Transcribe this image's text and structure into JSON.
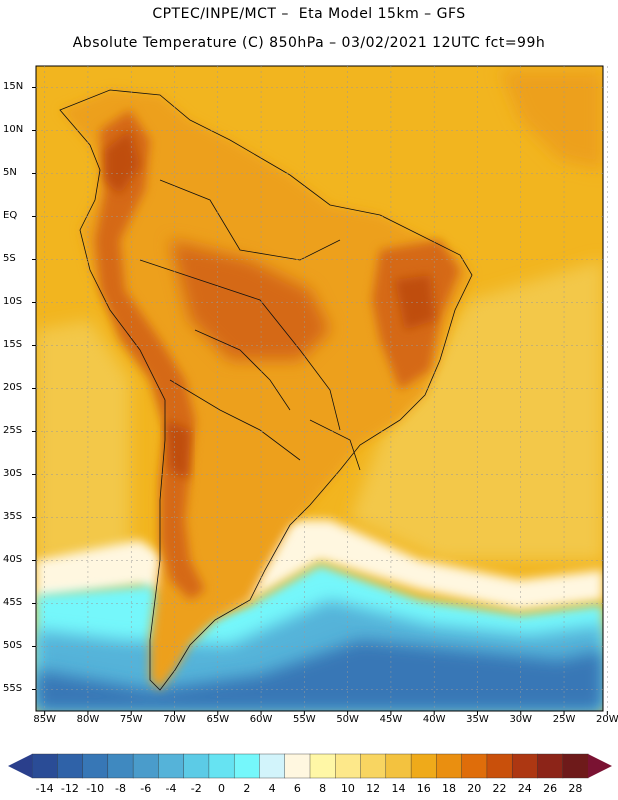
{
  "header": {
    "line1": "CPTEC/INPE/MCT –  Eta Model 15km – GFS",
    "line2": "Absolute Temperature (C) 850hPa – 03/02/2021 12UTC fct=99h"
  },
  "lat_labels": [
    "15N",
    "10N",
    "5N",
    "EQ",
    "5S",
    "10S",
    "15S",
    "20S",
    "25S",
    "30S",
    "35S",
    "40S",
    "45S",
    "50S",
    "55S"
  ],
  "lon_labels": [
    "85W",
    "80W",
    "75W",
    "70W",
    "65W",
    "60W",
    "55W",
    "50W",
    "45W",
    "40W",
    "35W",
    "30W",
    "25W",
    "20W"
  ],
  "colorbar": {
    "labels": [
      "-14",
      "-12",
      "-10",
      "-8",
      "-6",
      "-4",
      "-2",
      "0",
      "2",
      "4",
      "6",
      "8",
      "10",
      "12",
      "14",
      "16",
      "18",
      "20",
      "22",
      "24",
      "26",
      "28"
    ],
    "colors": [
      "#2a4c96",
      "#2f62a8",
      "#3777b6",
      "#3f89c0",
      "#4a9ccb",
      "#55b3d9",
      "#5ccbe6",
      "#66e3f2",
      "#75f7fb",
      "#d2f4fb",
      "#fff7e0",
      "#fff7a6",
      "#fde88a",
      "#f8d561",
      "#f3c23f",
      "#efaa1a",
      "#ea8f10",
      "#df6d0a",
      "#c9500b",
      "#ad3712",
      "#8c2418",
      "#6e1a1a"
    ],
    "under_color": "#2a3f8c",
    "over_color": "#7a1232"
  },
  "palette": {
    "ocean_warm": "#f2b51f",
    "ocean_yellow": "#f3c84a",
    "land": "#eda01a",
    "mountain": "#d56912",
    "peak": "#bf4e10",
    "cold_light": "#75f7fb",
    "cold_mid": "#55b3d9",
    "cold_deep": "#3777b6",
    "cream": "#fff7e0"
  }
}
